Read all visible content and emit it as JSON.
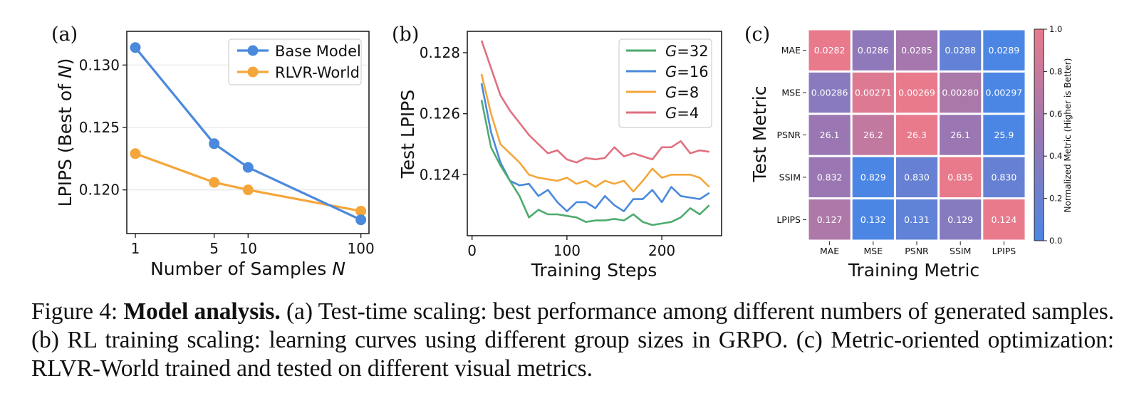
{
  "caption": {
    "prefix": "Figure 4: ",
    "bold": "Model analysis.",
    "text": " (a) Test-time scaling: best performance among different numbers of generated samples. (b) RL training scaling: learning curves using different group sizes in GRPO. (c) Metric-oriented optimization: RLVR-World trained and tested on different visual metrics."
  },
  "colors": {
    "blue": "#4a89dc",
    "orange": "#f4a63a",
    "green": "#4fab6e",
    "pink": "#e0707f",
    "heat_low": "#4b86e4",
    "heat_mid": "#9a77b3",
    "heat_high": "#e87a8c"
  },
  "chart_data": [
    {
      "panel": "(a)",
      "type": "line",
      "xscale": "log",
      "x": [
        1,
        5,
        10,
        100
      ],
      "xticks": [
        "1",
        "5",
        "10",
        "100"
      ],
      "xlabel_main": "Number of Samples ",
      "xlabel_var": "N",
      "ylabel_main": "LPIPS (Best of ",
      "ylabel_var": "N",
      "ylabel_end": ")",
      "ylim": [
        0.1165,
        0.1327
      ],
      "yticks": [
        "0.120",
        "0.125",
        "0.130"
      ],
      "ytick_values": [
        0.12,
        0.125,
        0.13
      ],
      "grid": "horizontal",
      "legend": "top-right",
      "series": [
        {
          "name": "Base Model",
          "color": "#4a89dc",
          "values": [
            0.1314,
            0.1237,
            0.1218,
            0.1176
          ]
        },
        {
          "name": "RLVR-World",
          "color": "#f4a63a",
          "values": [
            0.1229,
            0.1206,
            0.12,
            0.1183
          ]
        }
      ]
    },
    {
      "panel": "(b)",
      "type": "line",
      "x": [
        10,
        20,
        30,
        40,
        50,
        60,
        70,
        80,
        90,
        100,
        110,
        120,
        130,
        140,
        150,
        160,
        170,
        180,
        190,
        200,
        210,
        220,
        230,
        240,
        250
      ],
      "xticks": [
        "0",
        "100",
        "200"
      ],
      "xtick_values": [
        0,
        100,
        200
      ],
      "xlim": [
        -5,
        263
      ],
      "xlabel": "Training Steps",
      "ylabel": "Test LPIPS",
      "ylim": [
        0.122,
        0.1287
      ],
      "yticks": [
        "0.124",
        "0.126",
        "0.128"
      ],
      "ytick_values": [
        0.124,
        0.126,
        0.128
      ],
      "legend": "top-right",
      "series": [
        {
          "name": "32",
          "color": "#4fab6e",
          "values": [
            0.12645,
            0.1249,
            0.1243,
            0.1238,
            0.1233,
            0.1226,
            0.12285,
            0.1227,
            0.1227,
            0.12265,
            0.1226,
            0.12245,
            0.1225,
            0.1225,
            0.12255,
            0.1225,
            0.1227,
            0.12245,
            0.12235,
            0.1224,
            0.12245,
            0.1226,
            0.1229,
            0.1227,
            0.123
          ]
        },
        {
          "name": "16",
          "color": "#4a89dc",
          "values": [
            0.127,
            0.1254,
            0.1244,
            0.1238,
            0.12365,
            0.1237,
            0.1233,
            0.1235,
            0.1231,
            0.1228,
            0.1231,
            0.1231,
            0.1229,
            0.1233,
            0.123,
            0.1228,
            0.1232,
            0.1232,
            0.1235,
            0.1231,
            0.1236,
            0.1233,
            0.12325,
            0.1232,
            0.1234
          ]
        },
        {
          "name": "8",
          "color": "#f4a63a",
          "values": [
            0.1273,
            0.126,
            0.125,
            0.1247,
            0.1244,
            0.124,
            0.1239,
            0.12385,
            0.1238,
            0.1239,
            0.1237,
            0.1238,
            0.1236,
            0.1238,
            0.1237,
            0.1238,
            0.12345,
            0.1238,
            0.1242,
            0.1239,
            0.124,
            0.124,
            0.124,
            0.1239,
            0.1236
          ]
        },
        {
          "name": "4",
          "color": "#e0707f",
          "values": [
            0.1284,
            0.1275,
            0.1266,
            0.1261,
            0.1257,
            0.1253,
            0.125,
            0.1247,
            0.1248,
            0.1245,
            0.1244,
            0.12455,
            0.1245,
            0.12455,
            0.1249,
            0.1246,
            0.1247,
            0.1246,
            0.1245,
            0.1249,
            0.1249,
            0.1251,
            0.1247,
            0.1248,
            0.12475
          ]
        }
      ],
      "legend_var": "G",
      "legend_eq": "="
    },
    {
      "panel": "(c)",
      "type": "heatmap",
      "xlabel": "Training Metric",
      "ylabel": "Test Metric",
      "columns": [
        "MAE",
        "MSE",
        "PSNR",
        "SSIM",
        "LPIPS"
      ],
      "rows": [
        "MAE",
        "MSE",
        "PSNR",
        "SSIM",
        "LPIPS"
      ],
      "cells": [
        [
          "0.0282",
          "0.0286",
          "0.0285",
          "0.0288",
          "0.0289"
        ],
        [
          "0.00286",
          "0.00271",
          "0.00269",
          "0.00280",
          "0.00297"
        ],
        [
          "26.1",
          "26.2",
          "26.3",
          "26.1",
          "25.9"
        ],
        [
          "0.832",
          "0.829",
          "0.830",
          "0.835",
          "0.830"
        ],
        [
          "0.127",
          "0.132",
          "0.131",
          "0.129",
          "0.124"
        ]
      ],
      "normalized": [
        [
          1.0,
          0.43,
          0.57,
          0.14,
          0.0
        ],
        [
          0.39,
          0.93,
          1.0,
          0.61,
          0.0
        ],
        [
          0.5,
          0.75,
          1.0,
          0.5,
          0.0
        ],
        [
          0.5,
          0.0,
          0.17,
          1.0,
          0.17
        ],
        [
          0.63,
          0.0,
          0.13,
          0.38,
          1.0
        ]
      ],
      "colorbar": {
        "label": "Normalized Metric (Higher is Better)",
        "ticks": [
          "0.0",
          "0.2",
          "0.4",
          "0.6",
          "0.8",
          "1.0"
        ],
        "tick_values": [
          0.0,
          0.2,
          0.4,
          0.6,
          0.8,
          1.0
        ]
      }
    }
  ]
}
